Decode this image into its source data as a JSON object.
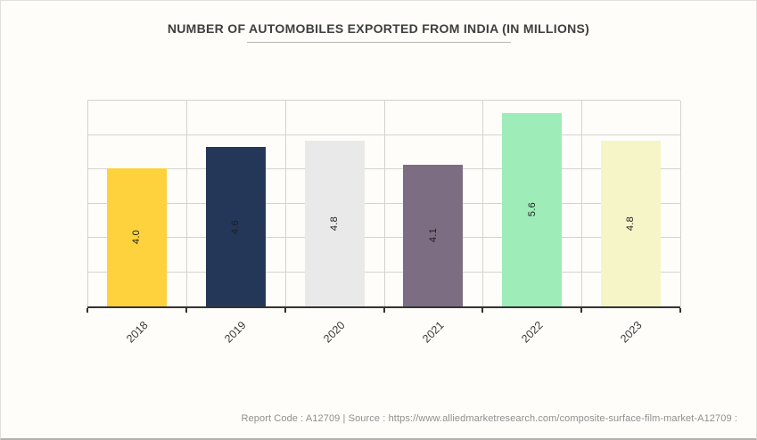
{
  "title": "NUMBER OF AUTOMOBILES EXPORTED FROM INDIA (IN MILLIONS)",
  "footer": {
    "text": "Report Code : A12709  |  Source : https://www.alliedmarketresearch.com/composite-surface-film-market-A12709 :"
  },
  "chart_data": {
    "type": "bar",
    "title": "NUMBER OF AUTOMOBILES EXPORTED FROM INDIA (IN MILLIONS)",
    "categories": [
      "2018",
      "2019",
      "2020",
      "2021",
      "2022",
      "2023"
    ],
    "values": [
      4.0,
      4.6,
      4.8,
      4.1,
      5.6,
      4.8
    ],
    "value_label_decimals": 1,
    "bar_colors": [
      "#FDD23C",
      "#253759",
      "#E9E9E9",
      "#7C6D82",
      "#9EECB8",
      "#F5F5C8"
    ],
    "xlabel": "",
    "ylabel": "",
    "ylim": [
      0,
      6
    ],
    "grid_interval": 1,
    "grid": "on",
    "legend": "none",
    "value_labels": "rotated-90-inside-bar",
    "category_labels": "rotated-45"
  },
  "colors": {
    "page_background": "#FFFDF9",
    "grid_line": "#d5d3d0",
    "axis_line": "#333333",
    "title_text": "#3f3f3f",
    "bar_value_text": "#1d1d1d",
    "category_text": "#3a3a3a",
    "footer_text": "#8f8f8f",
    "title_underline": "#b9b6b2"
  }
}
